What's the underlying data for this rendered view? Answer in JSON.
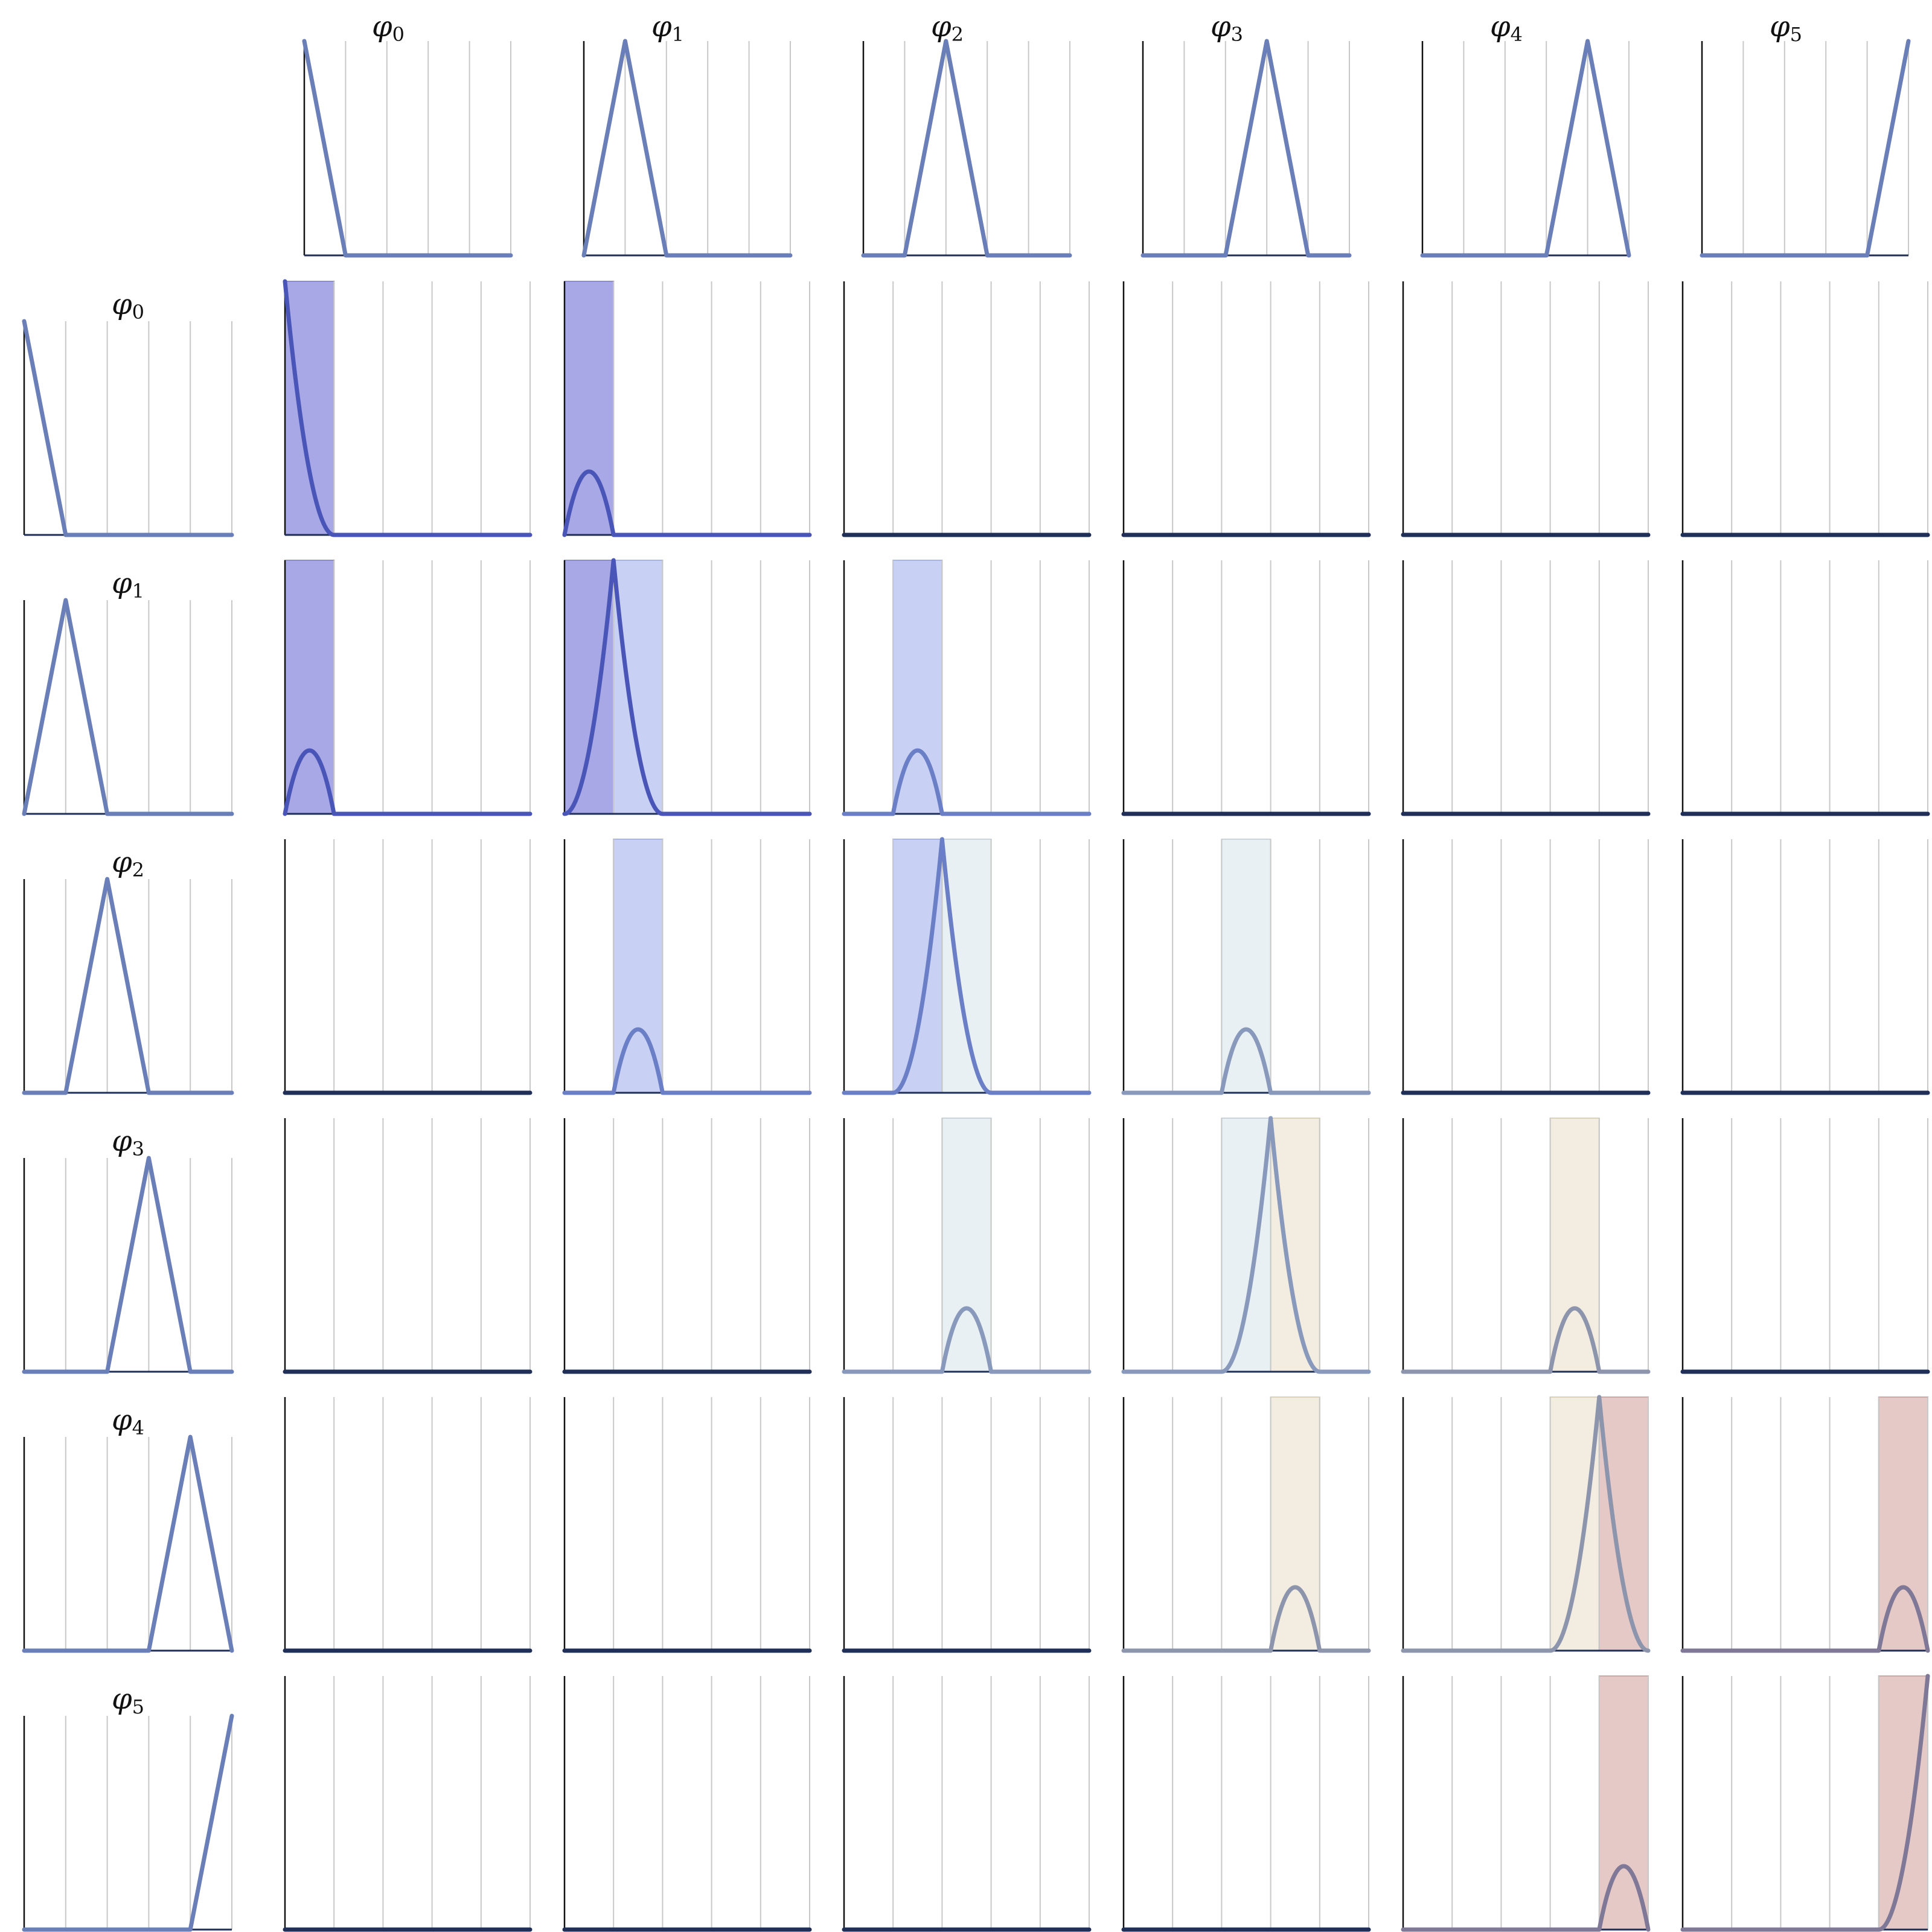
{
  "figure": {
    "column_headers": [
      {
        "symbol": "φ",
        "index": "0"
      },
      {
        "symbol": "φ",
        "index": "1"
      },
      {
        "symbol": "φ",
        "index": "2"
      },
      {
        "symbol": "φ",
        "index": "3"
      },
      {
        "symbol": "φ",
        "index": "4"
      },
      {
        "symbol": "φ",
        "index": "5"
      }
    ],
    "row_headers": [
      {
        "symbol": "φ",
        "index": "0"
      },
      {
        "symbol": "φ",
        "index": "1"
      },
      {
        "symbol": "φ",
        "index": "2"
      },
      {
        "symbol": "φ",
        "index": "3"
      },
      {
        "symbol": "φ",
        "index": "4"
      },
      {
        "symbol": "φ",
        "index": "5"
      }
    ],
    "colors": {
      "basis_line": "#6a7fb8",
      "axis": "#111111",
      "axis_x": "#1f2f58",
      "gridline": "#c8c8c8",
      "element_fills": [
        "#a9a8e6",
        "#c8d0f4",
        "#e8f0f3",
        "#f2ede0",
        "#e5c9c7"
      ],
      "element_lines": [
        "#4a55b8",
        "#6a7fc6",
        "#8899bb",
        "#8d95ad",
        "#7f7896"
      ],
      "element_borders": [
        "#8b8bcf",
        "#a9b4e6",
        "#c9d5dc",
        "#dcd2bc",
        "#cba9a6"
      ]
    }
  },
  "chart_data": {
    "type": "line",
    "description_grid": "6x6 matrix of products of piecewise-linear hat functions on a uniform mesh with 5 elements",
    "nodes": [
      0,
      1,
      2,
      3,
      4,
      5
    ],
    "basis_functions": [
      {
        "name": "φ0",
        "x": [
          0,
          1,
          5
        ],
        "y": [
          1,
          0,
          0
        ]
      },
      {
        "name": "φ1",
        "x": [
          0,
          1,
          2,
          5
        ],
        "y": [
          0,
          1,
          0,
          0
        ]
      },
      {
        "name": "φ2",
        "x": [
          0,
          1,
          2,
          3,
          5
        ],
        "y": [
          0,
          0,
          1,
          0,
          0
        ]
      },
      {
        "name": "φ3",
        "x": [
          0,
          2,
          3,
          4,
          5
        ],
        "y": [
          0,
          0,
          1,
          0,
          0
        ]
      },
      {
        "name": "φ4",
        "x": [
          0,
          3,
          4,
          5
        ],
        "y": [
          0,
          0,
          1,
          0
        ]
      },
      {
        "name": "φ5",
        "x": [
          0,
          4,
          5
        ],
        "y": [
          0,
          0,
          1
        ]
      }
    ],
    "products": "cell (i,j) shows φi·φj; shaded columns mark mesh elements where the product is nonzero",
    "xlim": [
      0,
      5
    ],
    "ylim": [
      0,
      1
    ]
  }
}
